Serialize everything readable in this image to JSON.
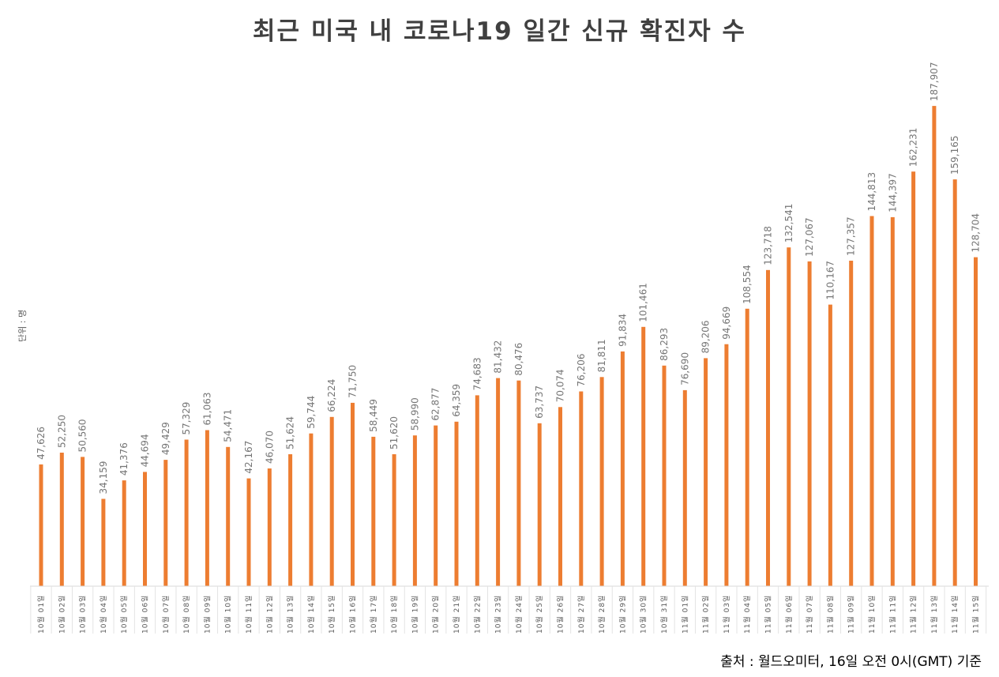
{
  "chart_data": {
    "type": "bar",
    "title": "최근 미국 내 코로나19 일간 신규 확진자 수",
    "unit_label": "단위 : 명",
    "source": "출처 : 월드오미터, 16일 오전 0시(GMT) 기준",
    "bar_color": "#ED7D31",
    "ylim": [
      0,
      200000
    ],
    "categories": [
      "10월 01일",
      "10월 02일",
      "10월 03일",
      "10월 04일",
      "10월 05일",
      "10월 06일",
      "10월 07일",
      "10월 08일",
      "10월 09일",
      "10월 10일",
      "10월 11일",
      "10월 12일",
      "10월 13일",
      "10월 14일",
      "10월 15일",
      "10월 16일",
      "10월 17일",
      "10월 18일",
      "10월 19일",
      "10월 20일",
      "10월 21일",
      "10월 22일",
      "10월 23일",
      "10월 24일",
      "10월 25일",
      "10월 26일",
      "10월 27일",
      "10월 28일",
      "10월 29일",
      "10월 30일",
      "10월 31일",
      "11월 01일",
      "11월 02일",
      "11월 03일",
      "11월 04일",
      "11월 05일",
      "11월 06일",
      "11월 07일",
      "11월 08일",
      "11월 09일",
      "11월 10일",
      "11월 11일",
      "11월 12일",
      "11월 13일",
      "11월 14일",
      "11월 15일"
    ],
    "values": [
      47626,
      52250,
      50560,
      34159,
      41376,
      44694,
      49429,
      57329,
      61063,
      54471,
      42167,
      46070,
      51624,
      59744,
      66224,
      71750,
      58449,
      51620,
      58990,
      62877,
      64359,
      74683,
      81432,
      80476,
      63737,
      70074,
      76206,
      81811,
      91834,
      101461,
      86293,
      76690,
      89206,
      94669,
      108554,
      123718,
      132541,
      127067,
      110167,
      127357,
      144813,
      144397,
      162231,
      187907,
      159165,
      128704
    ],
    "value_labels": [
      "47,626",
      "52,250",
      "50,560",
      "34,159",
      "41,376",
      "44,694",
      "49,429",
      "57,329",
      "61,063",
      "54,471",
      "42,167",
      "46,070",
      "51,624",
      "59,744",
      "66,224",
      "71,750",
      "58,449",
      "51,620",
      "58,990",
      "62,877",
      "64,359",
      "74,683",
      "81,432",
      "80,476",
      "63,737",
      "70,074",
      "76,206",
      "81,811",
      "91,834",
      "101,461",
      "86,293",
      "76,690",
      "89,206",
      "94,669",
      "108,554",
      "123,718",
      "132,541",
      "127,067",
      "110,167",
      "127,357",
      "144,813",
      "144,397",
      "162,231",
      "187,907",
      "159,165",
      "128,704"
    ]
  }
}
